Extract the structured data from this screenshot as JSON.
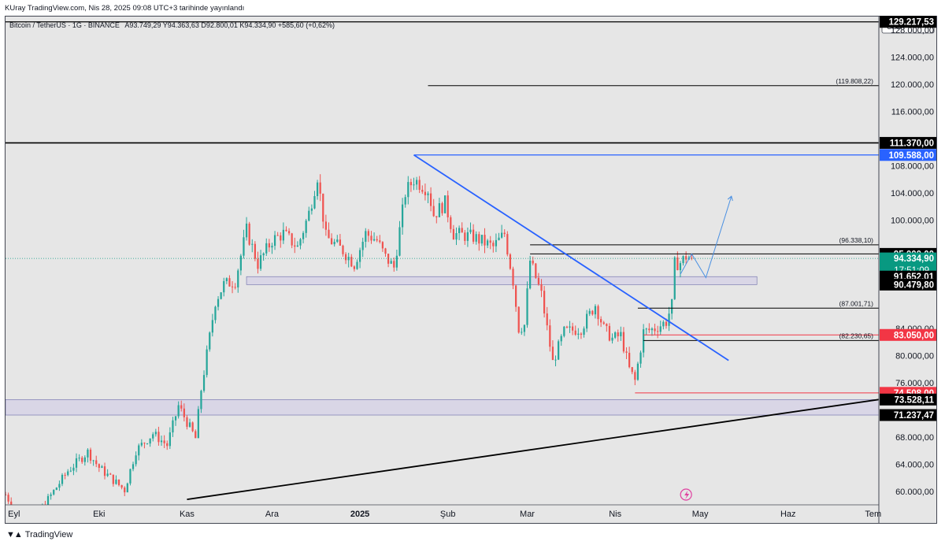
{
  "caption": "KUray TradingView.com, Nis 28, 2025 09:08 UTC+3 tarihinde yayınlandı",
  "legend": {
    "symbol": "Bitcoin / TetherUS · 1G · BINANCE",
    "ohlc": "A93.749,29 Y94.363,63 D92.800,01 K94.334,90 +585,60 (+0,62%)"
  },
  "brand": "TradingView",
  "colors": {
    "background": "#e6e6e6",
    "up": "#26a69a",
    "down": "#ef5350",
    "trend_blue": "#2962ff",
    "last_price": "#089981",
    "support_red": "#f23645",
    "line_black": "#000000"
  },
  "chart_data": {
    "type": "candlestick",
    "currency": "USDT",
    "ylim": [
      58000,
      130000
    ],
    "y_ticks": [
      {
        "value": 128000,
        "label": "128.000,00"
      },
      {
        "value": 124000,
        "label": "124.000,00"
      },
      {
        "value": 120000,
        "label": "120.000,00"
      },
      {
        "value": 116000,
        "label": "116.000,00"
      },
      {
        "value": 108000,
        "label": "108.000,00"
      },
      {
        "value": 104000,
        "label": "104.000,00"
      },
      {
        "value": 100000,
        "label": "100.000,00"
      },
      {
        "value": 84000,
        "label": "84.000,00"
      },
      {
        "value": 80000,
        "label": "80.000,00"
      },
      {
        "value": 76000,
        "label": "76.000,00"
      },
      {
        "value": 68000,
        "label": "68.000,00"
      },
      {
        "value": 64000,
        "label": "64.000,00"
      },
      {
        "value": 60000,
        "label": "60.000,00"
      }
    ],
    "x_ticks": [
      {
        "date": "2024-09-01",
        "label": "Eyl"
      },
      {
        "date": "2024-10-01",
        "label": "Eki"
      },
      {
        "date": "2024-11-01",
        "label": "Kas"
      },
      {
        "date": "2024-12-01",
        "label": "Ara"
      },
      {
        "date": "2025-01-01",
        "label": "2025"
      },
      {
        "date": "2025-02-01",
        "label": "Şub"
      },
      {
        "date": "2025-03-01",
        "label": "Mar"
      },
      {
        "date": "2025-04-01",
        "label": "Nis"
      },
      {
        "date": "2025-05-01",
        "label": "May"
      },
      {
        "date": "2025-06-01",
        "label": "Haz"
      },
      {
        "date": "2025-07-01",
        "label": "Tem"
      }
    ],
    "x_range": [
      "2024-08-29",
      "2025-07-03"
    ],
    "price_path": [
      [
        "2024-08-29",
        59500
      ],
      [
        "2024-09-06",
        54000
      ],
      [
        "2024-09-10",
        57000
      ],
      [
        "2024-09-15",
        60000
      ],
      [
        "2024-09-20",
        63000
      ],
      [
        "2024-09-27",
        65800
      ],
      [
        "2024-10-01",
        63500
      ],
      [
        "2024-10-05",
        62000
      ],
      [
        "2024-10-10",
        60200
      ],
      [
        "2024-10-14",
        66000
      ],
      [
        "2024-10-20",
        68500
      ],
      [
        "2024-10-25",
        66800
      ],
      [
        "2024-10-29",
        72600
      ],
      [
        "2024-11-04",
        67800
      ],
      [
        "2024-11-06",
        75000
      ],
      [
        "2024-11-11",
        88000
      ],
      [
        "2024-11-14",
        90500
      ],
      [
        "2024-11-18",
        91000
      ],
      [
        "2024-11-22",
        98500
      ],
      [
        "2024-11-26",
        93500
      ],
      [
        "2024-12-01",
        97000
      ],
      [
        "2024-12-05",
        98000
      ],
      [
        "2024-12-10",
        96000
      ],
      [
        "2024-12-14",
        101000
      ],
      [
        "2024-12-17",
        106500
      ],
      [
        "2024-12-20",
        97500
      ],
      [
        "2024-12-26",
        95500
      ],
      [
        "2024-12-30",
        93500
      ],
      [
        "2025-01-03",
        98000
      ],
      [
        "2025-01-07",
        97000
      ],
      [
        "2025-01-10",
        94500
      ],
      [
        "2025-01-13",
        93000
      ],
      [
        "2025-01-17",
        104000
      ],
      [
        "2025-01-20",
        106000
      ],
      [
        "2025-01-25",
        104500
      ],
      [
        "2025-01-27",
        100800
      ],
      [
        "2025-01-31",
        102500
      ],
      [
        "2025-02-03",
        98000
      ],
      [
        "2025-02-10",
        97500
      ],
      [
        "2025-02-17",
        96000
      ],
      [
        "2025-02-21",
        98000
      ],
      [
        "2025-02-24",
        91000
      ],
      [
        "2025-02-26",
        84000
      ],
      [
        "2025-02-28",
        84500
      ],
      [
        "2025-03-02",
        94000
      ],
      [
        "2025-03-06",
        89000
      ],
      [
        "2025-03-10",
        79000
      ],
      [
        "2025-03-14",
        83500
      ],
      [
        "2025-03-20",
        84000
      ],
      [
        "2025-03-25",
        87500
      ],
      [
        "2025-03-28",
        84000
      ],
      [
        "2025-03-31",
        82500
      ],
      [
        "2025-04-03",
        83000
      ],
      [
        "2025-04-06",
        78000
      ],
      [
        "2025-04-08",
        76300
      ],
      [
        "2025-04-11",
        83500
      ],
      [
        "2025-04-15",
        84000
      ],
      [
        "2025-04-19",
        85000
      ],
      [
        "2025-04-21",
        87500
      ],
      [
        "2025-04-22",
        93500
      ],
      [
        "2025-04-24",
        93700
      ],
      [
        "2025-04-26",
        94600
      ],
      [
        "2025-04-28",
        94334.9
      ]
    ],
    "levels": [
      {
        "value": 129217.53,
        "label": "129.217,53",
        "style": "black"
      },
      {
        "value": 119808.22,
        "label": "(119.808,22)",
        "style": "annotation"
      },
      {
        "value": 111370.0,
        "label": "111.370,00",
        "style": "black"
      },
      {
        "value": 109588.0,
        "label": "109.588,00",
        "style": "blue"
      },
      {
        "value": 96338.1,
        "label": "(96.338,10)",
        "style": "annotation"
      },
      {
        "value": 95000.0,
        "label": "95.000,00",
        "style": "black"
      },
      {
        "value": 94334.9,
        "label": "94.334,90",
        "style": "last"
      },
      {
        "value": 91652.01,
        "label": "91.652,01",
        "style": "black"
      },
      {
        "value": 90479.8,
        "label": "90.479,80",
        "style": "black"
      },
      {
        "value": 87001.71,
        "label": "(87.001,71)",
        "style": "annotation"
      },
      {
        "value": 82230.65,
        "label": "(82.230,65)",
        "style": "annotation"
      },
      {
        "value": 83050.0,
        "label": "83.050,00",
        "style": "red"
      },
      {
        "value": 74508.0,
        "label": "74.508,00",
        "style": "red"
      },
      {
        "value": 73528.11,
        "label": "73.528,11",
        "style": "black"
      },
      {
        "value": 71237.47,
        "label": "71.237,47",
        "style": "black"
      }
    ],
    "countdown": "17:51:09",
    "zones": [
      {
        "from": 91652.01,
        "to": 90479.8,
        "start": "2024-11-22",
        "end": "2025-05-21"
      },
      {
        "from": 73528.11,
        "to": 71237.47,
        "start": "2024-08-29",
        "end": "2025-07-03"
      }
    ],
    "trendlines": [
      {
        "from": [
          "2025-01-20",
          109588
        ],
        "to": [
          "2025-05-11",
          79300
        ],
        "color": "blue"
      },
      {
        "from": [
          "2024-11-01",
          58800
        ],
        "to": [
          "2025-07-03",
          73528.11
        ],
        "color": "black"
      }
    ],
    "projection": [
      [
        "2025-04-24",
        92000
      ],
      [
        "2025-04-28",
        95000
      ],
      [
        "2025-05-03",
        91500
      ],
      [
        "2025-05-12",
        103500
      ]
    ]
  }
}
